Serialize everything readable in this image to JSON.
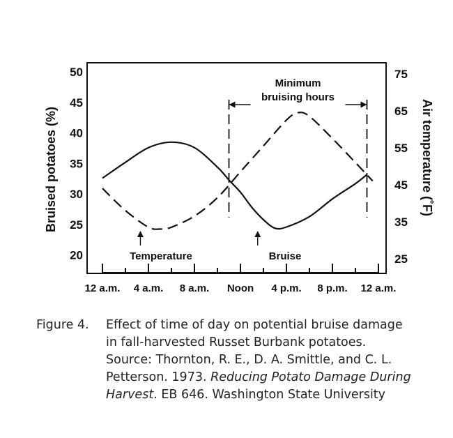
{
  "chart_data": {
    "type": "line",
    "title": "",
    "xlabel": "",
    "ylabel": "Bruised potatoes (%)",
    "y2label": "Air temperature (˚F)",
    "categories": [
      "12 a.m.",
      "4 a.m.",
      "8 a.m.",
      "Noon",
      "4 p.m.",
      "8 p.m.",
      "12 a.m."
    ],
    "x_range": [
      0,
      24
    ],
    "ylim": [
      17,
      51.5
    ],
    "yticks": [
      20,
      25,
      30,
      35,
      40,
      45,
      50
    ],
    "y2lim": [
      21,
      78
    ],
    "y2ticks": [
      25,
      35,
      45,
      55,
      65,
      75
    ],
    "grid": false,
    "legend": "none",
    "series": [
      {
        "name": "Bruise",
        "axis": "left",
        "line_style": "solid",
        "x": [
          0,
          2,
          4,
          6,
          8,
          10,
          11,
          12,
          13,
          14,
          15,
          16,
          18,
          20,
          22,
          23
        ],
        "y": [
          32.6,
          35.2,
          37.6,
          38.5,
          37.6,
          34.4,
          32.3,
          30.3,
          27.8,
          25.8,
          24.4,
          24.6,
          26.3,
          29.2,
          31.7,
          33.2
        ]
      },
      {
        "name": "Temperature",
        "axis": "right",
        "line_style": "dashed",
        "x": [
          0,
          2,
          4,
          5,
          6,
          8,
          10,
          12,
          14,
          16,
          17,
          18,
          20,
          22,
          23.5
        ],
        "y": [
          44,
          38,
          33.5,
          33,
          33.5,
          36.5,
          41.5,
          48.5,
          55.5,
          62.5,
          64.5,
          63.5,
          57.5,
          51,
          46
        ]
      }
    ],
    "annotations": {
      "temperature_label": "Temperature",
      "bruise_label": "Bruise",
      "minimum_bruising_line1": "Minimum",
      "minimum_bruising_line2": "bruising hours"
    },
    "minimum_bruising_window_hours": [
      11,
      23
    ]
  },
  "caption": {
    "label": "Figure 4.",
    "line1": "Effect of time of day on potential bruise damage",
    "line2": "in fall-harvested Russet Burbank potatoes.",
    "line3": "Source: Thornton, R. E., D. A. Smittle, and C. L.",
    "line4": "Petterson. 1973. ",
    "line5_italic": "Reducing Potato Damage During",
    "line6_italic": "Harvest",
    "line6_rest": ". EB 646. Washington State University"
  }
}
